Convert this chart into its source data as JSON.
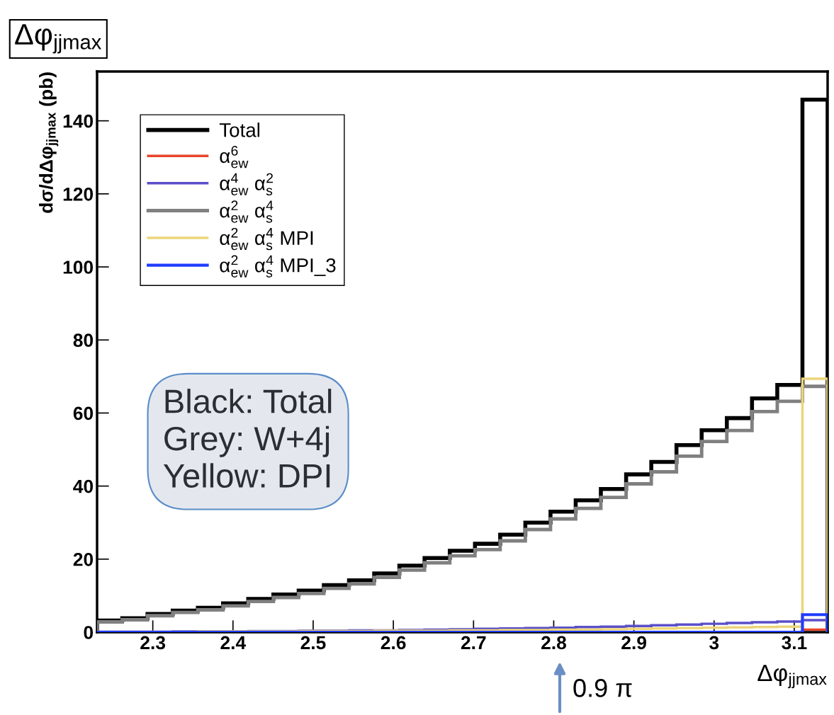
{
  "chart_data": {
    "type": "histogram",
    "title": "Δφ$_{jjmax}$",
    "xlabel": "Δφ$_{jjmax}$",
    "ylabel": "dσ/dΔφ$_{jjmax}$ (pb)",
    "bins": [
      2.2305,
      2.2619,
      2.2934,
      2.3248,
      2.3562,
      2.3876,
      2.419,
      2.4504,
      2.4819,
      2.5133,
      2.5447,
      2.5761,
      2.6075,
      2.6389,
      2.6704,
      2.7018,
      2.7332,
      2.7646,
      2.796,
      2.8274,
      2.8588,
      2.8903,
      2.9217,
      2.9531,
      2.9845,
      3.0159,
      3.0473,
      3.0788,
      3.1102,
      3.1416
    ],
    "series": [
      {
        "name": "Total",
        "color": "#000000",
        "values": [
          3.2,
          3.8,
          5.0,
          5.9,
          6.7,
          7.9,
          9.1,
          10.3,
          11.4,
          12.9,
          14.2,
          16.1,
          18.2,
          20.3,
          22.3,
          24.2,
          26.7,
          30.0,
          33.0,
          36.1,
          39.2,
          43.2,
          46.6,
          51.2,
          55.3,
          58.6,
          64.0,
          67.7,
          145.8
        ]
      },
      {
        "name": "α$^{6}$$_{ew}$",
        "color": "#e8452a",
        "values": [
          0,
          0,
          0,
          0,
          0,
          0,
          0,
          0,
          0,
          0,
          0,
          0,
          0,
          0,
          0,
          0,
          0,
          0,
          0,
          0,
          0,
          0,
          0,
          0,
          0,
          0,
          0,
          0,
          0.7
        ]
      },
      {
        "name": "α$^{4}$$_{ew}$ α$^{2}$$_{s}$",
        "color": "#5a4fc8",
        "values": [
          0.1,
          0.1,
          0.1,
          0.2,
          0.2,
          0.2,
          0.3,
          0.3,
          0.4,
          0.4,
          0.5,
          0.5,
          0.6,
          0.7,
          0.8,
          0.9,
          1.0,
          1.1,
          1.2,
          1.4,
          1.5,
          1.7,
          1.9,
          2.1,
          2.3,
          2.5,
          2.7,
          2.9,
          3.3
        ]
      },
      {
        "name": "α$^{2}$$_{ew}$ α$^{4}$$_{s}$",
        "color": "#808080",
        "values": [
          2.8,
          3.4,
          4.5,
          5.4,
          6.1,
          7.2,
          8.4,
          9.5,
          10.6,
          12.0,
          13.2,
          15.0,
          17.0,
          19.0,
          20.9,
          22.6,
          25.0,
          28.1,
          31.0,
          33.9,
          36.9,
          40.6,
          43.9,
          48.2,
          52.2,
          55.2,
          60.4,
          63.2,
          67.3
        ]
      },
      {
        "name": "α$^{2}$$_{ew}$ α$^{4}$$_{s}$ MPI",
        "color": "#ecd57a",
        "values": [
          0.1,
          0.1,
          0.1,
          0.1,
          0.2,
          0.2,
          0.2,
          0.2,
          0.3,
          0.3,
          0.3,
          0.4,
          0.4,
          0.4,
          0.5,
          0.5,
          0.6,
          0.6,
          0.7,
          0.7,
          0.8,
          0.9,
          1.0,
          1.1,
          1.2,
          1.3,
          1.4,
          1.5,
          69.4
        ]
      },
      {
        "name": "α$^{2}$$_{ew}$ α$^{4}$$_{s}$ MPI_3",
        "color": "#1f3cff",
        "values": [
          0,
          0,
          0,
          0,
          0,
          0,
          0,
          0,
          0,
          0,
          0,
          0,
          0,
          0,
          0,
          0,
          0,
          0,
          0,
          0,
          0,
          0,
          0,
          0,
          0,
          0,
          0,
          0,
          4.8
        ]
      }
    ],
    "xlim": [
      2.2305,
      3.1416
    ],
    "ylim": [
      0,
      153.5
    ],
    "xticks": [
      2.3,
      2.4,
      2.5,
      2.6,
      2.7,
      2.8,
      2.9,
      3,
      3.1
    ],
    "yticks": [
      0,
      20,
      40,
      60,
      80,
      100,
      120,
      140
    ],
    "legend": "top left",
    "grid": false,
    "annotations": [
      "Black: Total\nGrey: W+4j\nYellow: DPI",
      "0.9 π"
    ]
  }
}
